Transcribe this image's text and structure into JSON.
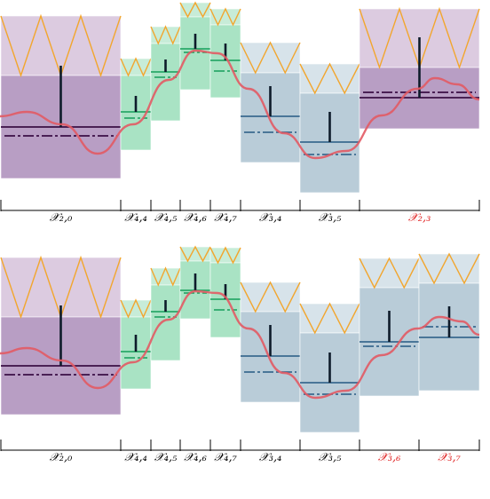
{
  "colors": {
    "purple_top": "#dccbe0",
    "purple_bottom": "#b89ec4",
    "green_top": "#c7ecd8",
    "green_bottom": "#a9e3c4",
    "blue_top": "#d7e3ea",
    "blue_bottom": "#b9ccd8",
    "zigzag": "#f2a62e",
    "curve": "#e25a64",
    "purple_line": "#3b0f45",
    "green_line": "#2aa86a",
    "blue_line": "#3b6a8f",
    "bar": "#0d1b2a",
    "label": "#000000",
    "label_highlight": "#e02020",
    "axis": "#000000"
  },
  "panels": [
    {
      "id": "top",
      "segments": [
        {
          "label": "𝒳₂,₀",
          "highlight": false
        },
        {
          "label": "𝒳₄,₄",
          "highlight": false
        },
        {
          "label": "𝒳₄,₅",
          "highlight": false
        },
        {
          "label": "𝒳₄,₆",
          "highlight": false
        },
        {
          "label": "𝒳₄,₇",
          "highlight": false
        },
        {
          "label": "𝒳₃,₄",
          "highlight": false
        },
        {
          "label": "𝒳₃,₅",
          "highlight": false
        },
        {
          "label": "𝒳₂,₃",
          "highlight": true
        }
      ]
    },
    {
      "id": "bottom",
      "segments": [
        {
          "label": "𝒳₂,₀",
          "highlight": false
        },
        {
          "label": "𝒳₄,₄",
          "highlight": false
        },
        {
          "label": "𝒳₄,₅",
          "highlight": false
        },
        {
          "label": "𝒳₄,₆",
          "highlight": false
        },
        {
          "label": "𝒳₄,₇",
          "highlight": false
        },
        {
          "label": "𝒳₃,₄",
          "highlight": false
        },
        {
          "label": "𝒳₃,₅",
          "highlight": false
        },
        {
          "label": "𝒳₃,₆",
          "highlight": true
        },
        {
          "label": "𝒳₃,₇",
          "highlight": true
        }
      ]
    }
  ]
}
